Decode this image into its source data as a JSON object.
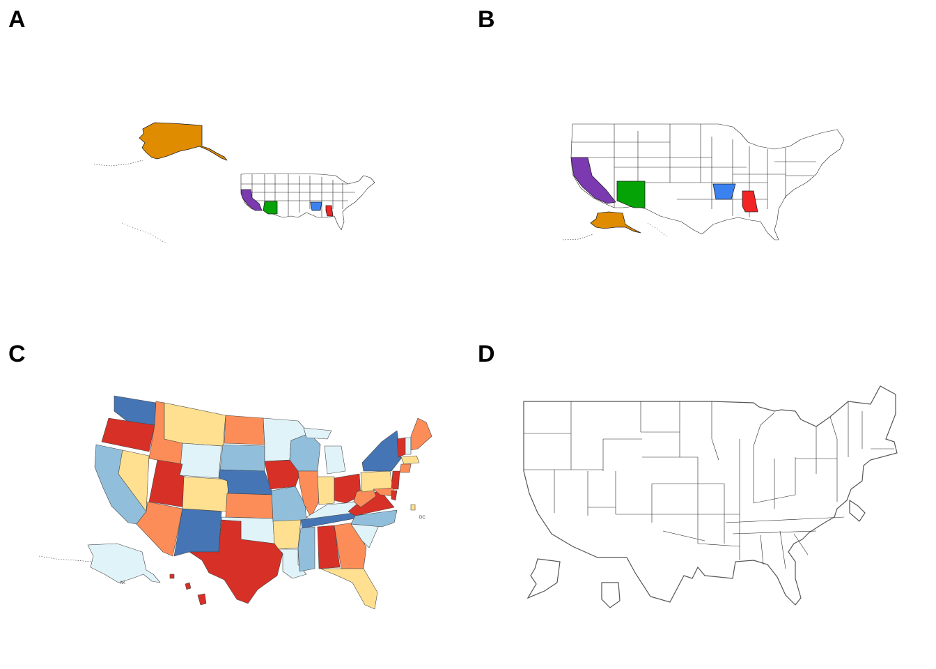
{
  "panels": {
    "a": {
      "label": "A"
    },
    "b": {
      "label": "B"
    },
    "c": {
      "label": "C"
    },
    "d": {
      "label": "D"
    }
  },
  "highlight_colors": {
    "alaska": "#e08c00",
    "california": "#7b3aaf",
    "arizona": "#06a306",
    "arkansas": "#3b82f0",
    "alabama": "#f22424"
  },
  "choropleth_palette": [
    "#d73027",
    "#fc8d59",
    "#fee090",
    "#e0f3f8",
    "#91bfdb",
    "#4575b4"
  ],
  "tiny_labels": {
    "dc": "DC",
    "ak": "AK"
  }
}
